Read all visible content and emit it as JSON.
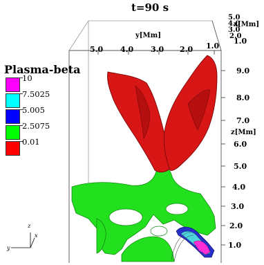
{
  "title": "t=90 s",
  "legend": {
    "title": "Plasma-beta",
    "items": [
      {
        "label": "10",
        "color": "#ff00ff"
      },
      {
        "label": "7.5025",
        "color": "#00ffff"
      },
      {
        "label": "5.005",
        "color": "#0000ff"
      },
      {
        "label": "2.5075",
        "color": "#00ff00"
      },
      {
        "label": "0.01",
        "color": "#ff0000"
      }
    ]
  },
  "axes": {
    "y": {
      "label": "y[Mm]",
      "ticks": [
        "5.0",
        "4.0",
        "3.0",
        "2.0",
        "1.0"
      ]
    },
    "x": {
      "label": "x[Mm]",
      "ticks": [
        "5.0",
        "4.0",
        "3.0",
        "2.0",
        "1.0"
      ]
    },
    "z": {
      "label": "z[Mm]",
      "ticks": [
        "9.0",
        "8.0",
        "7.0",
        "6.0",
        "5.0",
        "4.0",
        "3.0",
        "2.0",
        "1.0"
      ]
    }
  },
  "triad": {
    "z": "z",
    "x": "x",
    "y": "y"
  }
}
